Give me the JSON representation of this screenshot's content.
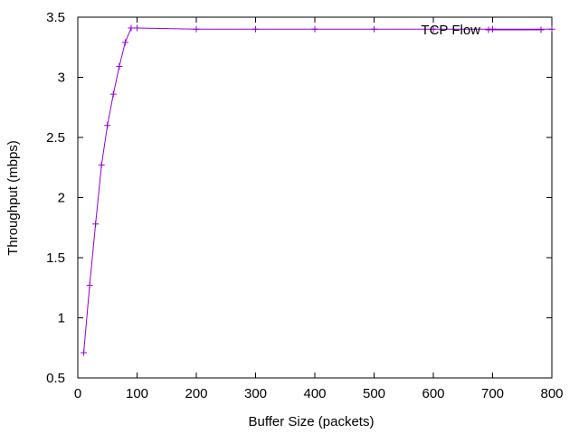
{
  "chart_data": {
    "type": "line",
    "title": "",
    "xlabel": "Buffer Size (packets)",
    "ylabel": "Throughput (mbps)",
    "xlim": [
      0,
      800
    ],
    "ylim": [
      0.5,
      3.5
    ],
    "xticks": [
      0,
      100,
      200,
      300,
      400,
      500,
      600,
      700,
      800
    ],
    "yticks": [
      0.5,
      1,
      1.5,
      2,
      2.5,
      3,
      3.5
    ],
    "xtick_labels": [
      "0",
      "100",
      "200",
      "300",
      "400",
      "500",
      "600",
      "700",
      "800"
    ],
    "ytick_labels": [
      "0.5",
      "1",
      "1.5",
      "2",
      "2.5",
      "3",
      "3.5"
    ],
    "grid": false,
    "legend_position": "top-right",
    "series": [
      {
        "name": "TCP Flow",
        "color": "#9400d3",
        "marker": "plus",
        "x": [
          10,
          20,
          30,
          40,
          50,
          60,
          70,
          80,
          90,
          100,
          200,
          300,
          400,
          500,
          600,
          700,
          800
        ],
        "y": [
          0.71,
          1.27,
          1.78,
          2.27,
          2.6,
          2.86,
          3.09,
          3.29,
          3.41,
          3.41,
          3.4,
          3.4,
          3.4,
          3.4,
          3.4,
          3.4,
          3.4
        ]
      }
    ]
  }
}
